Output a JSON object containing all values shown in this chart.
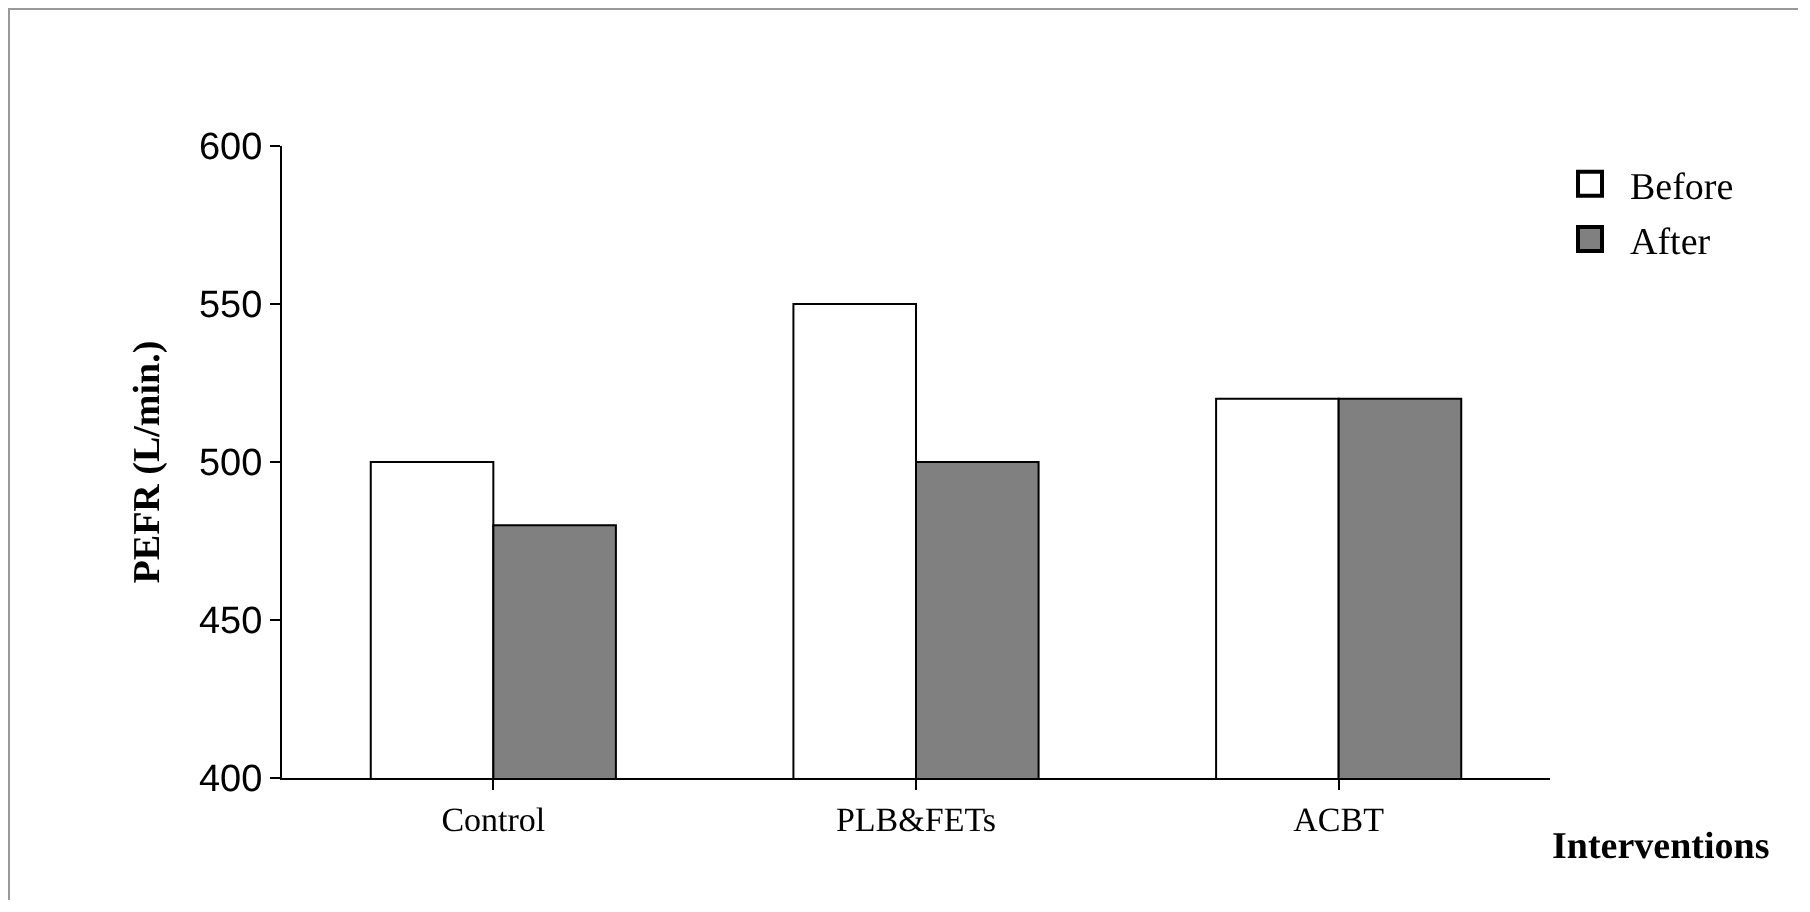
{
  "chart_data": {
    "type": "bar",
    "xlabel": "Interventions",
    "ylabel": "PEFR (L/min.)",
    "categories": [
      "Control",
      "PLB&FETs",
      "ACBT"
    ],
    "series": [
      {
        "name": "Before",
        "color": "#ffffff",
        "values": [
          500,
          550,
          520
        ]
      },
      {
        "name": "After",
        "color": "#808080",
        "values": [
          480,
          500,
          520
        ]
      }
    ],
    "ylim": [
      400,
      600
    ],
    "yticks": [
      400,
      450,
      500,
      550,
      600
    ],
    "grid": false,
    "legend": "top right"
  }
}
